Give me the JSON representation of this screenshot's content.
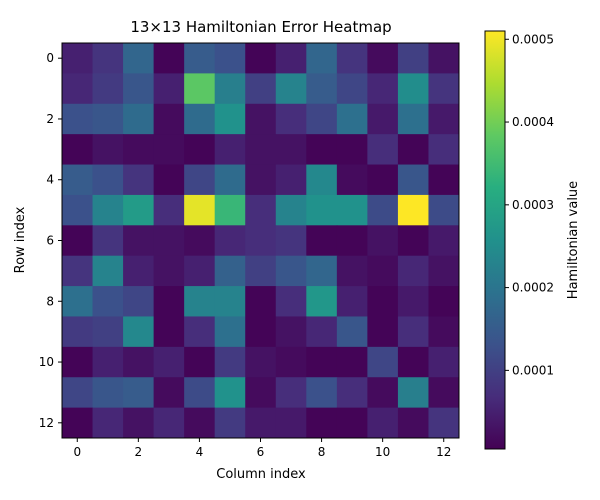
{
  "chart_data": {
    "type": "heatmap",
    "title": "13×13 Hamiltonian Error Heatmap",
    "xlabel": "Column index",
    "ylabel": "Row index",
    "colorbar_label": "Hamiltonian value",
    "colormap": "viridis",
    "x_ticks": [
      "0",
      "2",
      "4",
      "6",
      "8",
      "10",
      "12"
    ],
    "y_ticks": [
      "0",
      "2",
      "4",
      "6",
      "8",
      "10",
      "12"
    ],
    "colorbar_ticks": [
      "0.0001",
      "0.0002",
      "0.0003",
      "0.0004",
      "0.0005"
    ],
    "vmin": 5e-06,
    "vmax": 0.00051,
    "values": [
      [
        5e-05,
        8e-05,
        0.00017,
        1e-05,
        0.00015,
        0.00013,
        1e-05,
        5e-05,
        0.00017,
        8e-05,
        2e-05,
        0.0001,
        3e-05
      ],
      [
        6e-05,
        9e-05,
        0.00014,
        5e-05,
        0.00038,
        0.00022,
        0.0001,
        0.00023,
        0.00015,
        0.00011,
        6e-05,
        0.00025,
        8e-05
      ],
      [
        0.00013,
        0.00014,
        0.00018,
        2e-05,
        0.00018,
        0.00026,
        3e-05,
        7e-05,
        0.00011,
        0.00019,
        4e-05,
        0.00019,
        4e-05
      ],
      [
        1e-05,
        3e-05,
        2e-05,
        2e-05,
        1e-05,
        5e-05,
        3e-05,
        3e-05,
        1e-05,
        1e-05,
        7e-05,
        1e-05,
        7e-05
      ],
      [
        0.00015,
        0.00013,
        8e-05,
        1e-05,
        0.00011,
        0.00018,
        3e-05,
        5e-05,
        0.00024,
        2e-05,
        1e-05,
        0.00014,
        1e-05
      ],
      [
        0.00013,
        0.00023,
        0.00028,
        7e-05,
        0.00049,
        0.00034,
        7e-05,
        0.00023,
        0.00026,
        0.00026,
        0.00012,
        0.00051,
        0.00012
      ],
      [
        1e-05,
        8e-05,
        3e-05,
        3e-05,
        2e-05,
        6e-05,
        7e-05,
        8e-05,
        1e-05,
        1e-05,
        3e-05,
        1e-05,
        4e-05
      ],
      [
        8e-05,
        0.00023,
        5e-05,
        3e-05,
        5e-05,
        0.00016,
        0.0001,
        0.00014,
        0.00017,
        3e-05,
        2e-05,
        6e-05,
        3e-05
      ],
      [
        0.00019,
        0.00013,
        0.00011,
        1e-05,
        0.00023,
        0.00023,
        1e-05,
        7e-05,
        0.00027,
        5e-05,
        1e-05,
        4e-05,
        1e-05
      ],
      [
        9e-05,
        0.0001,
        0.00024,
        1e-05,
        7e-05,
        0.00019,
        1e-05,
        3e-05,
        6e-05,
        0.00014,
        1e-05,
        7e-05,
        2e-05
      ],
      [
        1e-05,
        5e-05,
        3e-05,
        5e-05,
        1e-05,
        9e-05,
        3e-05,
        2e-05,
        1e-05,
        1e-05,
        0.00011,
        1e-05,
        5e-05
      ],
      [
        0.00011,
        0.00014,
        0.00015,
        2e-05,
        0.00012,
        0.00026,
        2e-05,
        7e-05,
        0.00013,
        7e-05,
        2e-05,
        0.00022,
        2e-05
      ],
      [
        1e-05,
        6e-05,
        3e-05,
        6e-05,
        2e-05,
        9e-05,
        4e-05,
        4e-05,
        1e-05,
        1e-05,
        5e-05,
        2e-05,
        8e-05
      ]
    ]
  }
}
